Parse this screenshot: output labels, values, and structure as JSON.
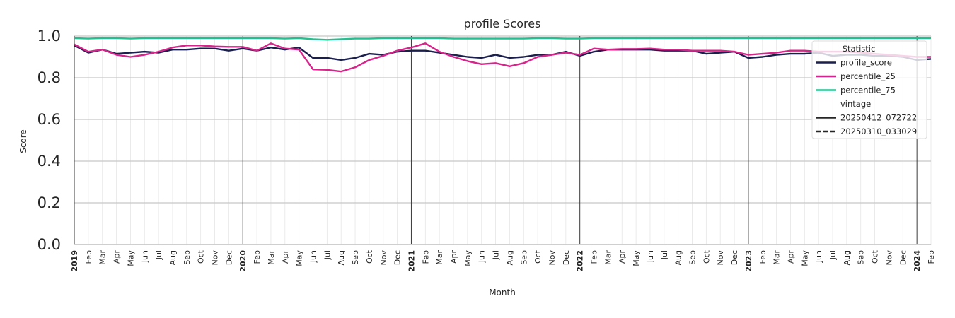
{
  "chart_data": {
    "type": "line",
    "title": "profile Scores",
    "xlabel": "Month",
    "ylabel": "Score",
    "ylim": [
      0.0,
      1.0
    ],
    "yticks": [
      "0.0",
      "0.2",
      "0.4",
      "0.6",
      "0.8",
      "1.0"
    ],
    "grid": true,
    "legend_position": "top-right",
    "x_start": "2019-01",
    "x": [
      "2019",
      "Feb",
      "Mar",
      "Apr",
      "May",
      "Jun",
      "Jul",
      "Aug",
      "Sep",
      "Oct",
      "Nov",
      "Dec",
      "2020",
      "Feb",
      "Mar",
      "Apr",
      "May",
      "Jun",
      "Jul",
      "Aug",
      "Sep",
      "Oct",
      "Nov",
      "Dec",
      "2021",
      "Feb",
      "Mar",
      "Apr",
      "May",
      "Jun",
      "Jul",
      "Aug",
      "Sep",
      "Oct",
      "Nov",
      "Dec",
      "2022",
      "Feb",
      "Mar",
      "Apr",
      "May",
      "Jun",
      "Jul",
      "Aug",
      "Sep",
      "Oct",
      "Nov",
      "Dec",
      "2023",
      "Feb",
      "Mar",
      "Apr",
      "May",
      "Jun",
      "Jul",
      "Aug",
      "Sep",
      "Oct",
      "Nov",
      "Dec",
      "2024",
      "Feb"
    ],
    "legend": {
      "title": "Statistic",
      "vintage_title": "vintage",
      "vintages": [
        {
          "name": "20250412_072722",
          "style": "solid"
        },
        {
          "name": "20250310_033029",
          "style": "dashed"
        }
      ]
    },
    "series": [
      {
        "name": "profile_score",
        "color": "#1a1f4e",
        "vintage": "20250412_072722",
        "values": [
          0.955,
          0.92,
          0.935,
          0.915,
          0.92,
          0.925,
          0.92,
          0.935,
          0.935,
          0.94,
          0.94,
          0.93,
          0.94,
          0.93,
          0.945,
          0.935,
          0.945,
          0.895,
          0.895,
          0.885,
          0.895,
          0.915,
          0.91,
          0.925,
          0.93,
          0.93,
          0.92,
          0.91,
          0.9,
          0.895,
          0.91,
          0.895,
          0.9,
          0.91,
          0.91,
          0.925,
          0.905,
          0.925,
          0.935,
          0.935,
          0.935,
          0.935,
          0.93,
          0.93,
          0.93,
          0.915,
          0.92,
          0.925,
          0.895,
          0.9,
          0.91,
          0.915,
          0.915,
          0.92,
          0.905,
          0.91,
          0.91,
          0.905,
          0.905,
          0.9,
          0.885,
          0.89
        ]
      },
      {
        "name": "percentile_25",
        "color": "#d6248a",
        "vintage": "20250412_072722",
        "values": [
          0.96,
          0.925,
          0.935,
          0.91,
          0.9,
          0.91,
          0.925,
          0.945,
          0.955,
          0.955,
          0.95,
          0.948,
          0.948,
          0.93,
          0.965,
          0.94,
          0.935,
          0.84,
          0.838,
          0.83,
          0.85,
          0.885,
          0.905,
          0.93,
          0.945,
          0.965,
          0.925,
          0.9,
          0.88,
          0.865,
          0.87,
          0.855,
          0.87,
          0.9,
          0.91,
          0.92,
          0.91,
          0.94,
          0.935,
          0.938,
          0.938,
          0.94,
          0.935,
          0.935,
          0.93,
          0.93,
          0.93,
          0.925,
          0.91,
          0.915,
          0.92,
          0.93,
          0.93,
          0.925,
          0.925,
          0.925,
          0.92,
          0.915,
          0.91,
          0.905,
          0.9,
          0.9
        ]
      },
      {
        "name": "percentile_75",
        "color": "#22c08f",
        "vintage": "20250412_072722",
        "values": [
          0.99,
          0.988,
          0.99,
          0.99,
          0.988,
          0.99,
          0.99,
          0.99,
          0.99,
          0.99,
          0.99,
          0.99,
          0.99,
          0.99,
          0.99,
          0.988,
          0.99,
          0.985,
          0.982,
          0.985,
          0.988,
          0.988,
          0.99,
          0.99,
          0.99,
          0.99,
          0.99,
          0.988,
          0.988,
          0.988,
          0.988,
          0.988,
          0.988,
          0.99,
          0.99,
          0.988,
          0.988,
          0.99,
          0.99,
          0.99,
          0.99,
          0.99,
          0.99,
          0.99,
          0.99,
          0.99,
          0.99,
          0.99,
          0.99,
          0.99,
          0.99,
          0.99,
          0.99,
          0.99,
          0.99,
          0.99,
          0.99,
          0.99,
          0.99,
          0.99,
          0.99,
          0.99
        ]
      }
    ]
  }
}
